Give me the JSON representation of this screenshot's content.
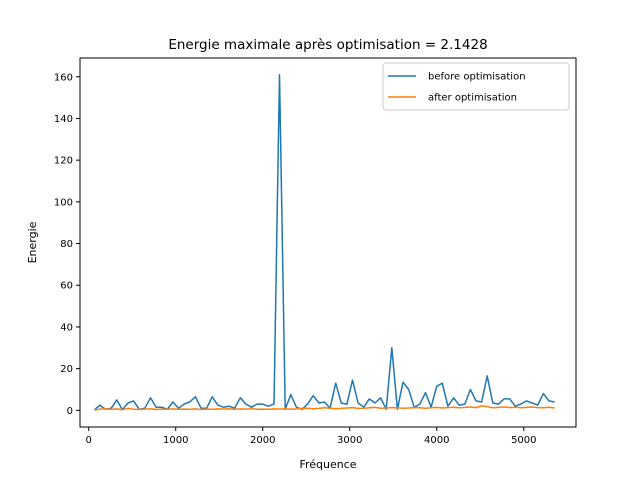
{
  "chart_data": {
    "type": "line",
    "title": "Energie maximale après optimisation = 2.1428",
    "xlabel": "Fréquence",
    "ylabel": "Energie",
    "xlim": [
      -100,
      5600
    ],
    "ylim": [
      -8,
      169
    ],
    "xticks": [
      0,
      1000,
      2000,
      3000,
      4000,
      5000
    ],
    "yticks": [
      0,
      20,
      40,
      60,
      80,
      100,
      120,
      140,
      160
    ],
    "grid": false,
    "legend_position": "top-right",
    "x": [
      65,
      129,
      194,
      258,
      323,
      387,
      452,
      516,
      581,
      645,
      710,
      774,
      839,
      903,
      968,
      1032,
      1097,
      1161,
      1226,
      1290,
      1355,
      1419,
      1484,
      1548,
      1613,
      1677,
      1742,
      1806,
      1871,
      1935,
      2000,
      2064,
      2129,
      2193,
      2258,
      2322,
      2387,
      2451,
      2516,
      2580,
      2645,
      2709,
      2774,
      2838,
      2903,
      2967,
      3032,
      3096,
      3161,
      3225,
      3290,
      3354,
      3419,
      3483,
      3548,
      3612,
      3677,
      3741,
      3806,
      3870,
      3935,
      3999,
      4064,
      4128,
      4193,
      4257,
      4322,
      4386,
      4451,
      4515,
      4580,
      4644,
      4709,
      4773,
      4838,
      4902,
      4967,
      5031,
      5096,
      5160,
      5225,
      5289,
      5354
    ],
    "series": [
      {
        "name": "before optimisation",
        "color": "#1f77b4",
        "values": [
          0.2,
          2.5,
          0.5,
          1.0,
          5.0,
          0.3,
          3.5,
          4.5,
          0.5,
          1.0,
          6.0,
          1.5,
          1.5,
          0.5,
          4.0,
          1.0,
          3.0,
          4.0,
          6.5,
          1.0,
          1.0,
          6.5,
          2.5,
          1.5,
          2.0,
          1.0,
          6.0,
          3.0,
          1.5,
          3.0,
          3.0,
          2.0,
          3.0,
          161.0,
          0.5,
          7.5,
          1.5,
          0.5,
          3.0,
          7.0,
          3.5,
          4.0,
          1.0,
          13.0,
          3.5,
          3.0,
          14.5,
          3.5,
          1.5,
          5.5,
          3.5,
          6.0,
          0.5,
          30.0,
          0.5,
          13.5,
          10.0,
          1.5,
          3.0,
          8.5,
          1.5,
          11.5,
          13.0,
          2.0,
          6.0,
          2.5,
          3.0,
          10.0,
          4.5,
          4.0,
          16.5,
          3.5,
          3.0,
          5.5,
          5.5,
          2.0,
          3.0,
          4.5,
          3.5,
          2.5,
          8.0,
          4.5,
          4.0
        ]
      },
      {
        "name": "after optimisation",
        "color": "#ff7f0e",
        "values": [
          0.1,
          0.6,
          0.8,
          0.5,
          0.7,
          0.3,
          0.9,
          0.5,
          0.4,
          0.6,
          0.8,
          0.4,
          0.6,
          0.5,
          0.7,
          0.5,
          0.6,
          0.5,
          0.7,
          0.4,
          0.6,
          0.5,
          0.7,
          0.6,
          0.8,
          0.5,
          0.7,
          0.6,
          0.8,
          0.5,
          0.6,
          0.5,
          0.7,
          0.6,
          0.8,
          0.5,
          0.7,
          0.9,
          1.0,
          0.8,
          0.9,
          1.2,
          1.0,
          0.8,
          0.9,
          1.1,
          1.3,
          0.9,
          1.0,
          1.2,
          1.4,
          1.0,
          1.1,
          1.3,
          1.2,
          1.0,
          1.1,
          1.3,
          1.2,
          1.0,
          1.2,
          1.4,
          1.1,
          1.3,
          1.5,
          1.2,
          1.4,
          1.6,
          1.3,
          2.1,
          1.8,
          1.2,
          1.4,
          1.6,
          1.3,
          1.5,
          1.2,
          1.4,
          1.6,
          1.3,
          1.2,
          1.5,
          1.1
        ]
      }
    ]
  }
}
